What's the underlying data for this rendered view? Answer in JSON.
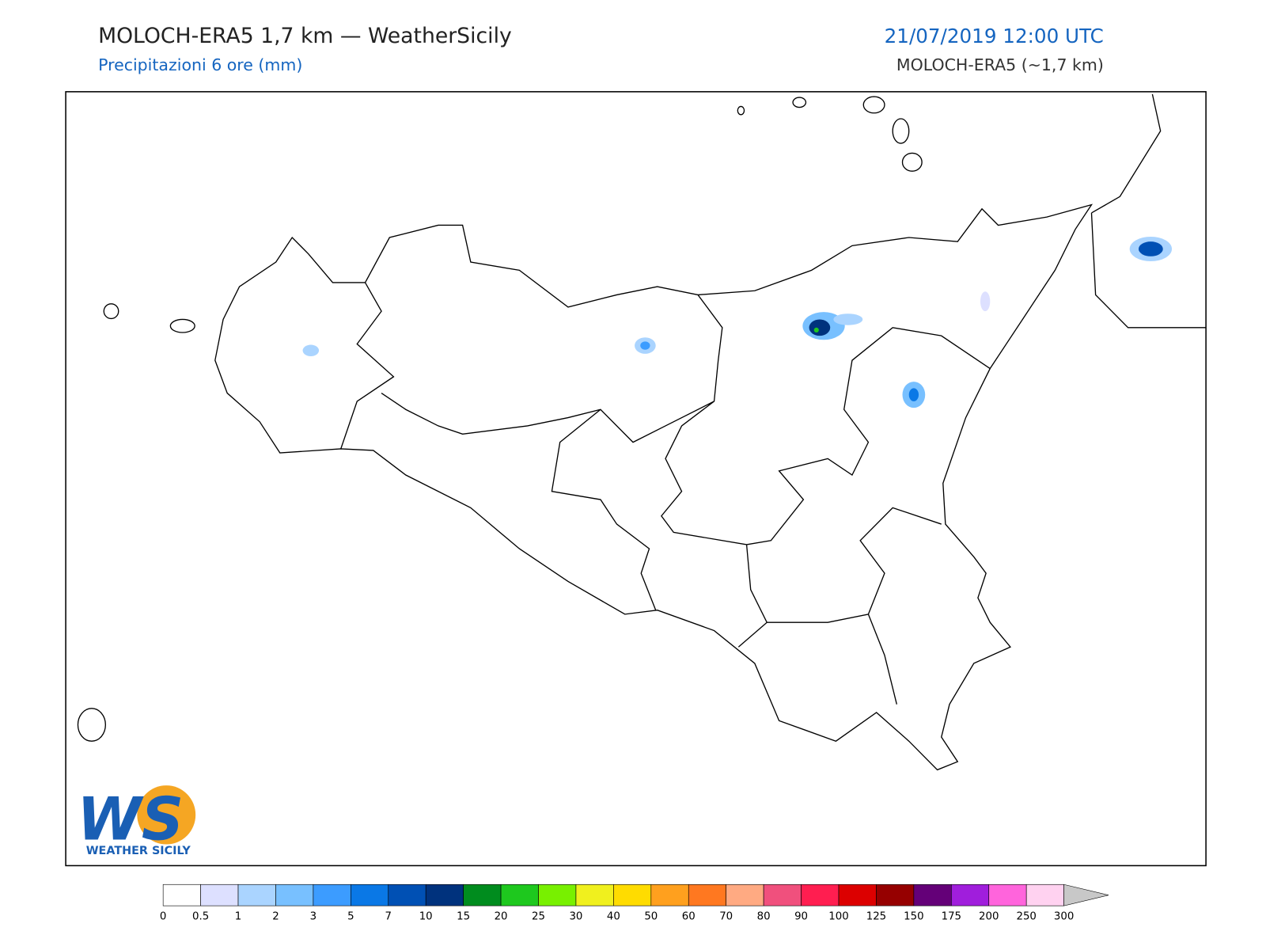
{
  "header": {
    "title": "MOLOCH-ERA5 1,7 km — WeatherSicily",
    "subtitle": "Precipitazioni 6 ore (mm)",
    "date": "21/07/2019 12:00 UTC",
    "model": "MOLOCH-ERA5 (~1,7 km)"
  },
  "logo": {
    "letters": "WS",
    "text": "WEATHER SICILY"
  },
  "colorbar": {
    "ticks": [
      0,
      0.5,
      1,
      2,
      3,
      5,
      7,
      10,
      15,
      20,
      25,
      30,
      40,
      50,
      60,
      70,
      80,
      90,
      100,
      125,
      150,
      175,
      200,
      250,
      300
    ],
    "colors": [
      "#ffffff",
      "#dde0ff",
      "#aad4ff",
      "#78c0ff",
      "#3c9cff",
      "#0a78e6",
      "#0050b4",
      "#00327d",
      "#008c1e",
      "#1ec81e",
      "#78f000",
      "#f0f01e",
      "#ffdc00",
      "#ffa01e",
      "#ff7820",
      "#ffaa82",
      "#f0507d",
      "#ff1e50",
      "#dc0000",
      "#960000",
      "#640078",
      "#a01edc",
      "#ff64dc",
      "#ffd2f0"
    ],
    "extend_color": "#c8c8c8"
  }
}
